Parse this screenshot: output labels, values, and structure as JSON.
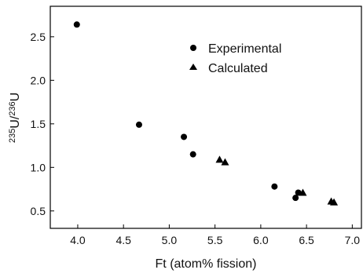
{
  "chart_data": {
    "type": "scatter",
    "xlabel": "Ft (atom% fission)",
    "ylabel_main": "U/",
    "ylabel_sup1": "235",
    "ylabel_sup2": "236",
    "ylabel_tail": "U",
    "xlim": [
      3.7,
      7.1
    ],
    "ylim": [
      0.3,
      2.85
    ],
    "x_ticks": [
      4.0,
      4.5,
      5.0,
      5.5,
      6.0,
      6.5,
      7.0
    ],
    "y_ticks": [
      0.5,
      1.0,
      1.5,
      2.0,
      2.5
    ],
    "x_tick_labels": [
      "4.0",
      "4.5",
      "5.0",
      "5.5",
      "6.0",
      "6.5",
      "7.0"
    ],
    "y_tick_labels": [
      "0.5",
      "1.0",
      "1.5",
      "2.0",
      "2.5"
    ],
    "legend_position": "top-right",
    "grid": false,
    "series": [
      {
        "name": "Experimental",
        "marker": "circle",
        "color": "#000000",
        "points": [
          [
            3.99,
            2.64
          ],
          [
            4.67,
            1.49
          ],
          [
            5.16,
            1.35
          ],
          [
            5.26,
            1.15
          ],
          [
            6.15,
            0.78
          ],
          [
            6.38,
            0.65
          ],
          [
            6.41,
            0.71
          ]
        ]
      },
      {
        "name": "Calculated",
        "marker": "triangle",
        "color": "#000000",
        "points": [
          [
            5.55,
            1.09
          ],
          [
            5.61,
            1.06
          ],
          [
            6.46,
            0.71
          ],
          [
            6.77,
            0.61
          ],
          [
            6.8,
            0.6
          ]
        ]
      }
    ]
  }
}
